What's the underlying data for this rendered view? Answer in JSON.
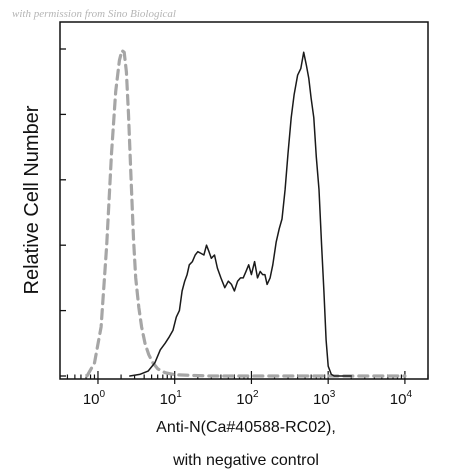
{
  "watermark": "with permission from Sino Biological",
  "chart_data": {
    "type": "line",
    "title": "",
    "xlabel_line1": "Anti-N(Ca#40588-RC02),",
    "xlabel_line2": "with negative control",
    "ylabel": "Relative Cell Number",
    "x_scale": "log",
    "xlim": [
      0.32,
      20000
    ],
    "ylim": [
      0,
      1
    ],
    "grid": false,
    "legend": "none",
    "x_ticks": [
      {
        "base": "10",
        "exp": "0",
        "value": 1
      },
      {
        "base": "10",
        "exp": "1",
        "value": 10
      },
      {
        "base": "10",
        "exp": "2",
        "value": 100
      },
      {
        "base": "10",
        "exp": "3",
        "value": 1000
      },
      {
        "base": "10",
        "exp": "4",
        "value": 10000
      }
    ],
    "y_ticks": [
      0,
      0.2,
      0.4,
      0.6,
      0.8,
      1.0
    ],
    "series": [
      {
        "style": "dashed",
        "color": "#a6a6a6",
        "x": [
          0.72,
          0.9,
          1.1,
          1.3,
          1.5,
          1.7,
          1.9,
          2.05,
          2.2,
          2.35,
          2.5,
          2.7,
          2.9,
          3.1,
          3.4,
          3.7,
          4.1,
          4.6,
          5.2,
          6.0,
          7.5,
          10,
          15,
          30,
          100,
          1000,
          10000
        ],
        "y": [
          0.0,
          0.04,
          0.15,
          0.4,
          0.68,
          0.87,
          0.965,
          0.995,
          0.99,
          0.93,
          0.8,
          0.6,
          0.42,
          0.3,
          0.21,
          0.15,
          0.1,
          0.065,
          0.04,
          0.022,
          0.01,
          0.004,
          0.002,
          0.0,
          0.0,
          0.0,
          0.0
        ]
      },
      {
        "style": "solid",
        "color": "#1a1a1a",
        "x": [
          2.6,
          3.5,
          4.5,
          5.5,
          6.5,
          7.5,
          8.5,
          9.5,
          10.5,
          11.5,
          12.5,
          13.5,
          14.5,
          15.5,
          17,
          18.5,
          20,
          22,
          24,
          26,
          28,
          30,
          33,
          36,
          40,
          45,
          50,
          55,
          60,
          66,
          72,
          78,
          85,
          92,
          100,
          110,
          120,
          130,
          140,
          150,
          160,
          175,
          190,
          210,
          230,
          250,
          275,
          300,
          330,
          360,
          400,
          440,
          480,
          520,
          560,
          600,
          650,
          700,
          760,
          820,
          880,
          940,
          1000,
          1100,
          1200,
          1500,
          2000
        ],
        "y": [
          0.0,
          0.005,
          0.015,
          0.04,
          0.08,
          0.1,
          0.12,
          0.14,
          0.18,
          0.2,
          0.26,
          0.29,
          0.31,
          0.34,
          0.35,
          0.37,
          0.38,
          0.375,
          0.37,
          0.4,
          0.38,
          0.36,
          0.37,
          0.33,
          0.3,
          0.27,
          0.29,
          0.28,
          0.26,
          0.29,
          0.3,
          0.3,
          0.32,
          0.34,
          0.31,
          0.35,
          0.3,
          0.32,
          0.31,
          0.31,
          0.28,
          0.3,
          0.34,
          0.41,
          0.45,
          0.48,
          0.57,
          0.68,
          0.79,
          0.86,
          0.92,
          0.94,
          0.99,
          0.95,
          0.91,
          0.85,
          0.79,
          0.67,
          0.57,
          0.4,
          0.26,
          0.11,
          0.03,
          0.005,
          0.0,
          0.0,
          0.0
        ]
      }
    ]
  }
}
